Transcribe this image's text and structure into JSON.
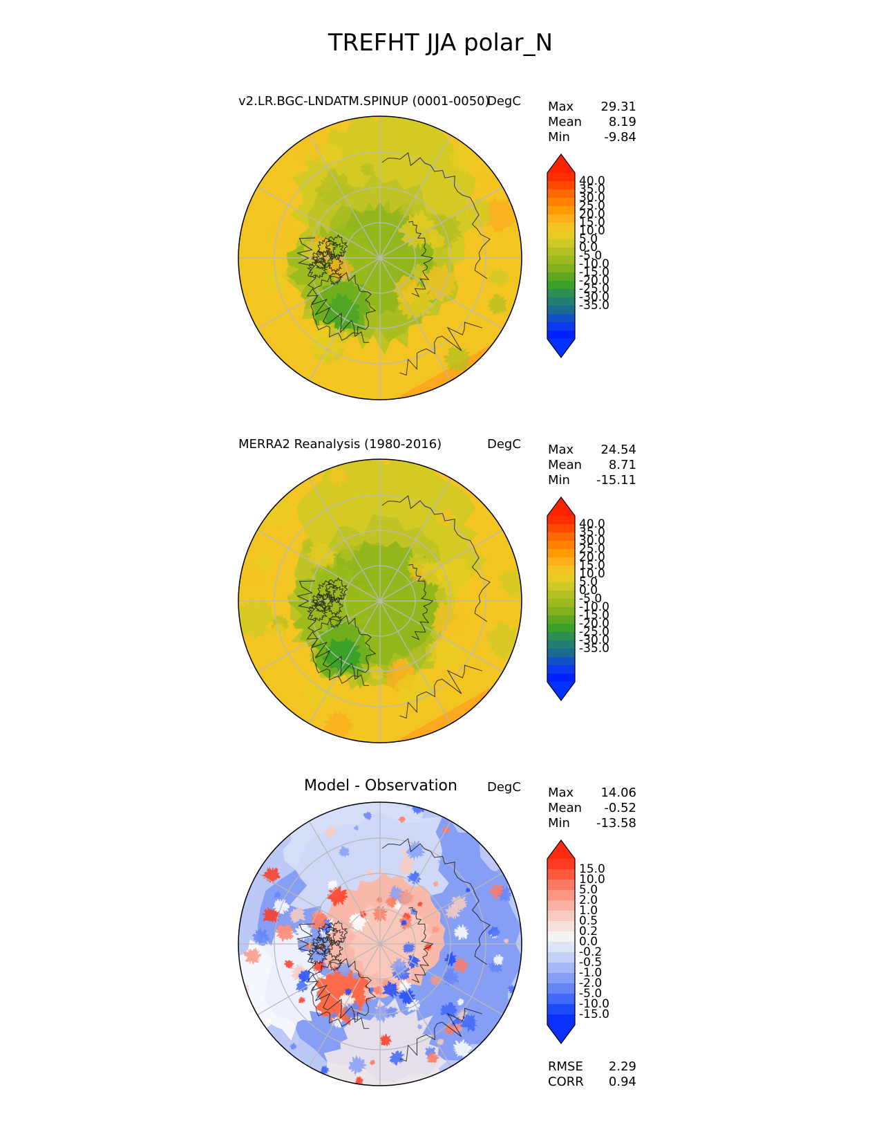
{
  "title": "TREFHT JJA polar_N",
  "panels": [
    {
      "id": "test",
      "label": "v2.LR.BGC-LNDATM.SPINUP (0001-0050)",
      "units": "DegC",
      "stats": [
        {
          "name": "Max",
          "value": "29.31"
        },
        {
          "name": "Mean",
          "value": "8.19"
        },
        {
          "name": "Min",
          "value": "-9.84"
        }
      ],
      "colorbar": {
        "ticks": [
          "40.0",
          "35.0",
          "30.0",
          "25.0",
          "20.0",
          "15.0",
          "10.0",
          "5.0",
          "0.0",
          "-5.0",
          "-10.0",
          "-15.0",
          "-20.0",
          "-25.0",
          "-30.0",
          "-35.0"
        ],
        "colors": [
          "#ff2e00",
          "#ff4a00",
          "#ff6a00",
          "#ff8300",
          "#ff9a00",
          "#feae1a",
          "#f3c321",
          "#e8cb22",
          "#cfc926",
          "#b4bf22",
          "#9aba1e",
          "#80b11c",
          "#5ea821",
          "#3ca129",
          "#2e8c55",
          "#247d74",
          "#1a6b8f",
          "#1051c6",
          "#0a39f0",
          "#0021ff"
        ],
        "upper_extend": "#ff2200",
        "lower_extend": "#0033ff"
      },
      "field": "model"
    },
    {
      "id": "reference",
      "label": "MERRA2 Reanalysis (1980-2016)",
      "units": "DegC",
      "stats": [
        {
          "name": "Max",
          "value": "24.54"
        },
        {
          "name": "Mean",
          "value": "8.71"
        },
        {
          "name": "Min",
          "value": "-15.11"
        }
      ],
      "colorbar": {
        "ticks": [
          "40.0",
          "35.0",
          "30.0",
          "25.0",
          "20.0",
          "15.0",
          "10.0",
          "5.0",
          "0.0",
          "-5.0",
          "-10.0",
          "-15.0",
          "-20.0",
          "-25.0",
          "-30.0",
          "-35.0"
        ],
        "colors": [
          "#ff2e00",
          "#ff4a00",
          "#ff6a00",
          "#ff8300",
          "#ff9a00",
          "#feae1a",
          "#f3c321",
          "#e8cb22",
          "#cfc926",
          "#b4bf22",
          "#9aba1e",
          "#80b11c",
          "#5ea821",
          "#3ca129",
          "#2e8c55",
          "#247d74",
          "#1a6b8f",
          "#1051c6",
          "#0a39f0",
          "#0021ff"
        ],
        "upper_extend": "#ff2200",
        "lower_extend": "#0033ff"
      },
      "field": "obs"
    },
    {
      "id": "diff",
      "label": "Model - Observation",
      "units": "DegC",
      "stats": [
        {
          "name": "Max",
          "value": "14.06"
        },
        {
          "name": "Mean",
          "value": "-0.52"
        },
        {
          "name": "Min",
          "value": "-13.58"
        }
      ],
      "colorbar": {
        "ticks": [
          "15.0",
          "10.0",
          "5.0",
          "2.0",
          "1.0",
          "0.5",
          "0.2",
          "0.0",
          "-0.2",
          "-0.5",
          "-1.0",
          "-2.0",
          "-5.0",
          "-10.0",
          "-15.0"
        ],
        "colors": [
          "#ff3a22",
          "#ff5a3e",
          "#fd7a62",
          "#fb9682",
          "#f9b2a2",
          "#f8cbc0",
          "#f6e2dc",
          "#f3f1f2",
          "#dfe4f6",
          "#c4d0f6",
          "#a6b8f7",
          "#869ff6",
          "#6585f6",
          "#4168f8",
          "#1e4bfa",
          "#0a30ff"
        ],
        "upper_extend": "#ff2a10",
        "lower_extend": "#0a30ff"
      },
      "field": "diff",
      "extra_stats": [
        {
          "name": "RMSE",
          "value": "2.29"
        },
        {
          "name": "CORR",
          "value": "0.94"
        }
      ]
    }
  ]
}
